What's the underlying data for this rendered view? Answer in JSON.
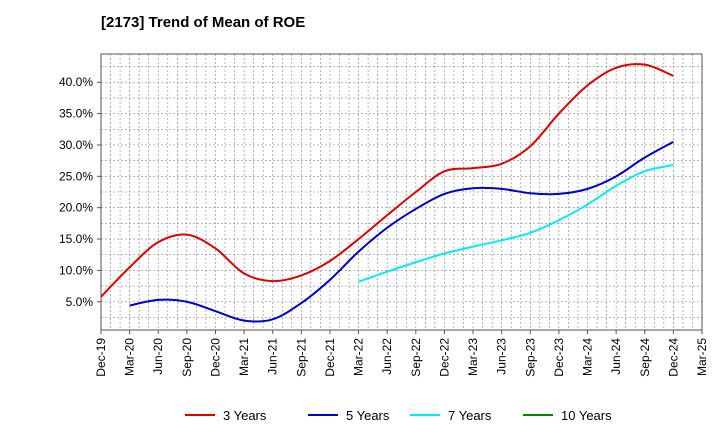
{
  "chart_data": {
    "type": "line",
    "title": "[2173]  Trend of Mean of ROE",
    "xlabel": "",
    "ylabel": "",
    "x_ticks": [
      "Dec-19",
      "Mar-20",
      "Jun-20",
      "Sep-20",
      "Dec-20",
      "Mar-21",
      "Jun-21",
      "Sep-21",
      "Dec-21",
      "Mar-22",
      "Jun-22",
      "Sep-22",
      "Dec-22",
      "Mar-23",
      "Jun-23",
      "Sep-23",
      "Dec-23",
      "Mar-24",
      "Jun-24",
      "Sep-24",
      "Dec-24",
      "Mar-25"
    ],
    "y_ticks": [
      "5.0%",
      "10.0%",
      "15.0%",
      "20.0%",
      "25.0%",
      "30.0%",
      "35.0%",
      "40.0%"
    ],
    "y_tick_values": [
      5,
      10,
      15,
      20,
      25,
      30,
      35,
      40
    ],
    "ylim": [
      0.5,
      44.5
    ],
    "grid": true,
    "legend_position": "bottom",
    "series": [
      {
        "name": "3 Years",
        "color": "#dd0000",
        "start_index": 0,
        "values": [
          5.8,
          10.5,
          14.5,
          15.7,
          13.5,
          9.5,
          8.3,
          9.2,
          11.5,
          15.0,
          18.8,
          22.5,
          25.8,
          26.3,
          27.0,
          29.8,
          35.0,
          39.5,
          42.3,
          42.8,
          41.0
        ]
      },
      {
        "name": "5 Years",
        "color": "#0000cc",
        "start_index": 1,
        "values": [
          4.4,
          5.3,
          5.0,
          3.5,
          2.0,
          2.2,
          4.8,
          8.5,
          13.0,
          16.8,
          19.8,
          22.2,
          23.1,
          23.0,
          22.3,
          22.2,
          23.0,
          25.0,
          28.0,
          30.5
        ]
      },
      {
        "name": "7 Years",
        "color": "#00eeee",
        "start_index": 9,
        "values": [
          8.2,
          9.8,
          11.3,
          12.7,
          13.8,
          14.8,
          16.0,
          18.0,
          20.5,
          23.5,
          25.8,
          26.8
        ]
      },
      {
        "name": "10 Years",
        "color": "#008800",
        "start_index": 0,
        "values": []
      }
    ]
  }
}
